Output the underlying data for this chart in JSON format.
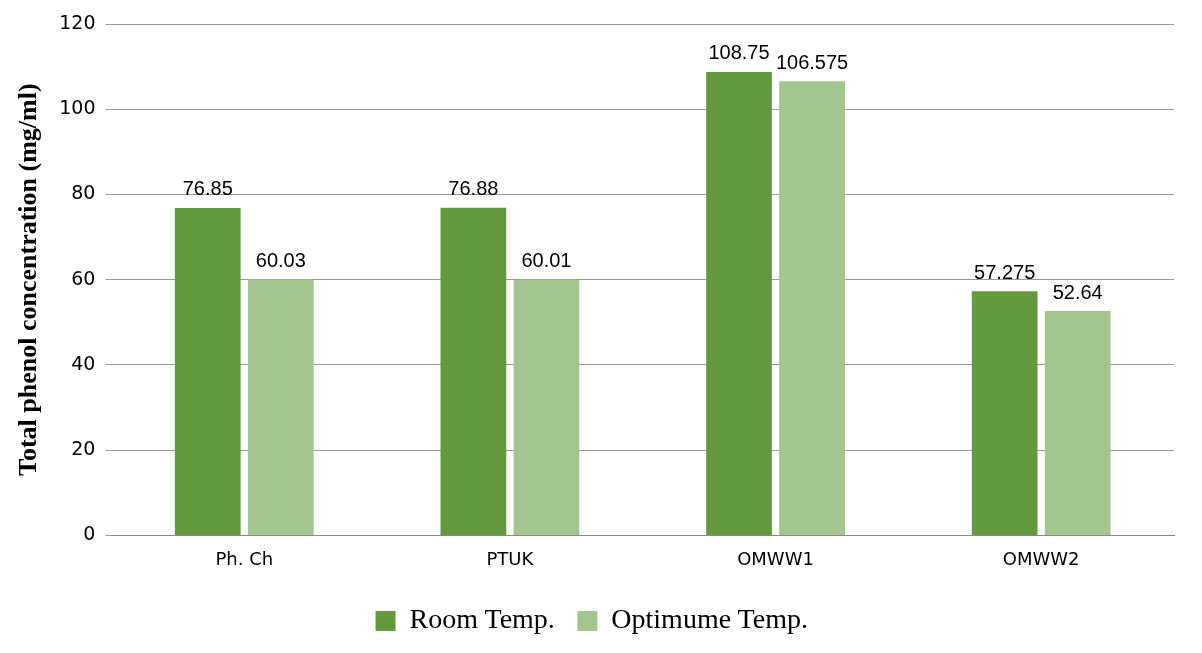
{
  "chart_data": {
    "type": "bar",
    "ylabel": "Total phenol concentration (mg/ml)",
    "categories": [
      "Ph. Ch",
      "PTUK",
      "OMWW1",
      "OMWW2"
    ],
    "series": [
      {
        "name": "Room Temp.",
        "color": "#629a3d",
        "values": [
          76.85,
          76.88,
          108.75,
          57.275
        ]
      },
      {
        "name": "Optimume Temp.",
        "color": "#a3c58e",
        "values": [
          60.03,
          60.01,
          106.575,
          52.64
        ]
      }
    ],
    "ylim": [
      0,
      120
    ],
    "yticks": [
      0,
      20,
      40,
      60,
      80,
      100,
      120
    ],
    "grid": "y",
    "legend": "bottom",
    "data_labels": true
  }
}
